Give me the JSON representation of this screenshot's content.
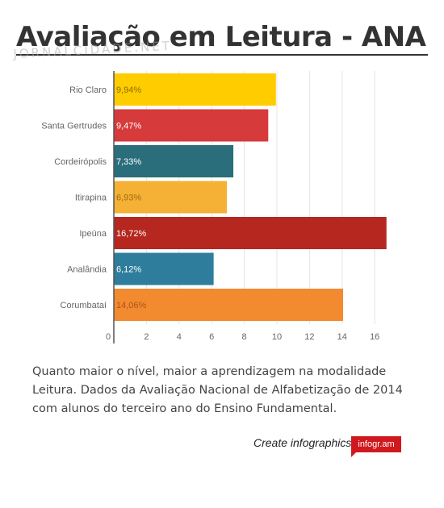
{
  "title": "Avaliação em Leitura - ANA",
  "watermark": "JORNALCIDADE.NET",
  "chart_data": {
    "type": "bar",
    "orientation": "horizontal",
    "title": "",
    "xlabel": "",
    "ylabel": "",
    "categories": [
      "Rio Claro",
      "Santa Gertrudes",
      "Cordeirópolis",
      "Itirapina",
      "Ipeúna",
      "Analândia",
      "Corumbataí"
    ],
    "values": [
      9.94,
      9.47,
      7.33,
      6.93,
      16.72,
      6.12,
      14.06
    ],
    "value_labels": [
      "9,94%",
      "9,47%",
      "7,33%",
      "6,93%",
      "16,72%",
      "6,12%",
      "14,06%"
    ],
    "colors": [
      "#ffcc00",
      "#d63a3a",
      "#2a6e7c",
      "#f5b135",
      "#b5271f",
      "#2e7d9c",
      "#f28a30"
    ],
    "label_colors": [
      "#8a6d00",
      "#ffffff",
      "#ffffff",
      "#9a6a12",
      "#ffffff",
      "#ffffff",
      "#b0541a"
    ],
    "xlim": [
      0,
      18
    ],
    "ticks": [
      0,
      2,
      4,
      6,
      8,
      10,
      12,
      14,
      16
    ],
    "tick_labels": [
      "0",
      "2",
      "4",
      "6",
      "8",
      "10",
      "12",
      "14",
      "16"
    ],
    "grid": true
  },
  "caption": "Quanto maior o nível, maior a aprendizagem na modalidade Leitura. Dados da Avaliação Nacional de Alfabetização de 2014 com alunos do terceiro ano do Ensino Fundamental.",
  "footer": {
    "create_text": "Create infographics",
    "logo_text": "infogr.am"
  }
}
